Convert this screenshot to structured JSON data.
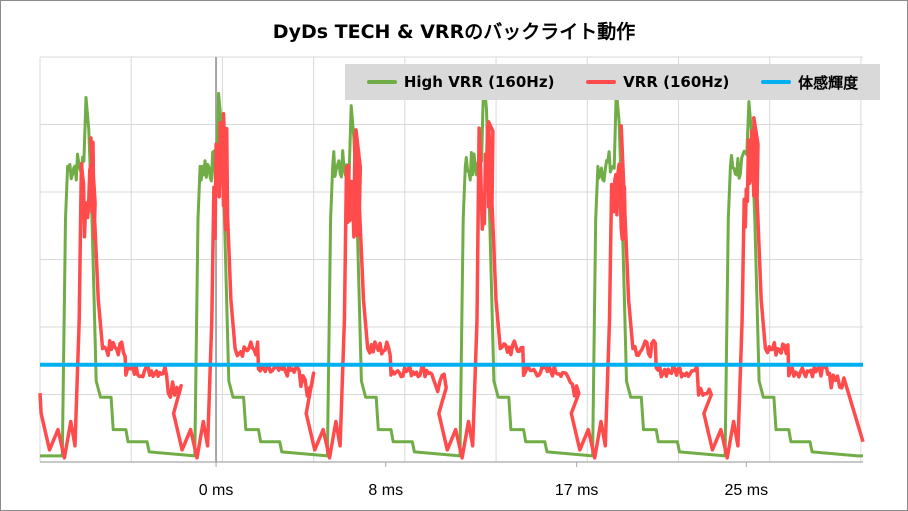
{
  "chart_data": {
    "type": "line",
    "title": "DyDs TECH & VRRのバックライト動作",
    "xlabel": "",
    "ylabel": "",
    "x_ticks": [
      {
        "label": "0 ms",
        "value": 0
      },
      {
        "label": "8 ms",
        "value": 8
      },
      {
        "label": "17 ms",
        "value": 17
      },
      {
        "label": "25 ms",
        "value": 25
      }
    ],
    "xlim": [
      -8.3,
      30.5
    ],
    "ylim": [
      0,
      100
    ],
    "grid": true,
    "legend_position": "top-right",
    "period_ms": 6.25,
    "pulse_starts_ms": [
      -6.25,
      0,
      6.25,
      12.5,
      18.75,
      25
    ],
    "series": [
      {
        "name": "High VRR (160Hz)",
        "color": "#70ad47",
        "description_points": [
          [
            -8.3,
            2
          ],
          [
            -7.3,
            2
          ],
          [
            -7.1,
            60
          ],
          [
            -6.9,
            73
          ],
          [
            -6.3,
            73
          ],
          [
            -6.1,
            90
          ],
          [
            -5.9,
            80
          ],
          [
            -5.6,
            20
          ],
          [
            -5.0,
            15
          ],
          [
            -4.8,
            8
          ],
          [
            -4.2,
            5
          ],
          [
            -3.5,
            3
          ],
          [
            -2.5,
            1
          ],
          [
            -1.2,
            1
          ],
          [
            -1.0,
            60
          ],
          [
            -0.8,
            73
          ],
          [
            -0.1,
            73
          ],
          [
            0.1,
            90
          ],
          [
            0.4,
            80
          ],
          [
            0.7,
            20
          ]
        ],
        "peak_values": [
          90,
          91,
          88,
          95,
          92,
          89
        ],
        "plateau_value": 73,
        "tail_values": [
          15,
          8,
          3
        ]
      },
      {
        "name": "VRR (160Hz)",
        "color": "#ff4b4b",
        "peak_values": [
          80,
          86,
          82,
          84,
          83,
          85
        ],
        "step_values": [
          25,
          22,
          20
        ],
        "floor_values": [
          10,
          3
        ]
      },
      {
        "name": "体感輝度",
        "color": "#00b0f0",
        "values": [
          [
            -8.3,
            24
          ],
          [
            30.5,
            24
          ]
        ]
      }
    ]
  }
}
